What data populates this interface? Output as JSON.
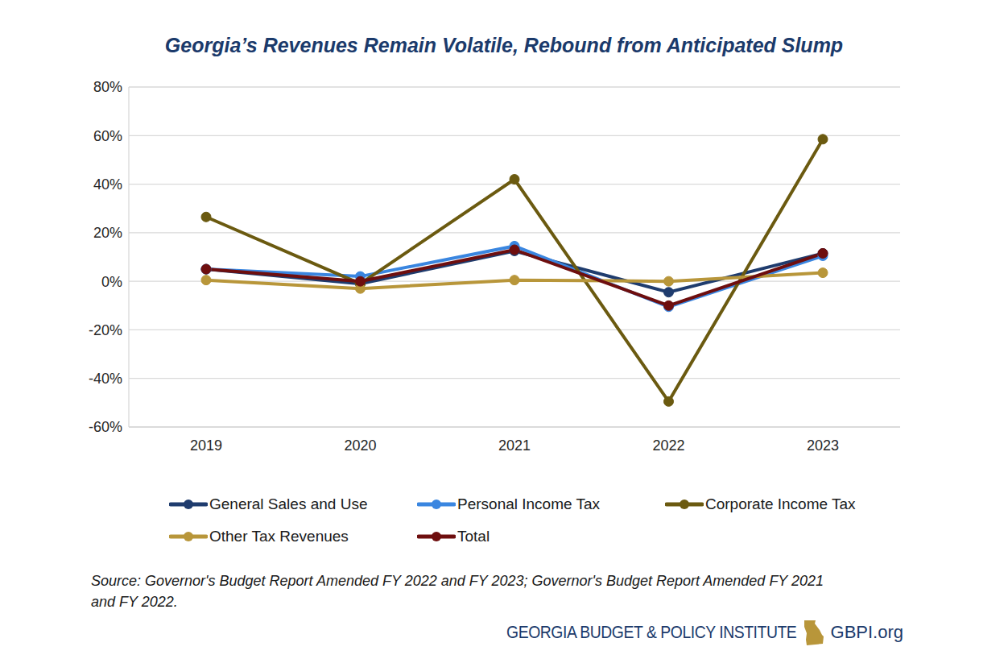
{
  "chart_data": {
    "type": "line",
    "title": "Georgia’s Revenues Remain Volatile, Rebound from Anticipated Slump",
    "categories": [
      "2019",
      "2020",
      "2021",
      "2022",
      "2023"
    ],
    "series": [
      {
        "name": "General Sales and Use",
        "color": "#1f3c6e",
        "values": [
          5,
          -1,
          12.5,
          -4.5,
          11.5
        ],
        "marker": "circle",
        "line_style": "solid"
      },
      {
        "name": "Personal Income Tax",
        "color": "#3a86e0",
        "values": [
          5,
          2,
          14.5,
          -10.5,
          10.5
        ],
        "marker": "circle",
        "line_style": "solid"
      },
      {
        "name": "Corporate Income Tax",
        "color": "#6b5a10",
        "values": [
          26.5,
          -1,
          42,
          -49.5,
          58.5
        ],
        "marker": "circle",
        "line_style": "solid"
      },
      {
        "name": "Other Tax Revenues",
        "color": "#b8963a",
        "values": [
          0.5,
          -3,
          0.5,
          0,
          3.5
        ],
        "marker": "circle",
        "line_style": "solid"
      },
      {
        "name": "Total",
        "color": "#6e0e0e",
        "values": [
          5,
          0,
          13,
          -10,
          11.5
        ],
        "marker": "circle",
        "line_style": "solid"
      }
    ],
    "ylim": [
      -60,
      80
    ],
    "yticks": [
      {
        "value": -60,
        "label": "-60%"
      },
      {
        "value": -40,
        "label": "-40%"
      },
      {
        "value": -20,
        "label": "-20%"
      },
      {
        "value": 0,
        "label": "0%"
      },
      {
        "value": 20,
        "label": "20%"
      },
      {
        "value": 40,
        "label": "40%"
      },
      {
        "value": 60,
        "label": "60%"
      },
      {
        "value": 80,
        "label": "80%"
      }
    ],
    "grid": true,
    "legend": "bottom",
    "source": "Source: Governor's Budget Report Amended FY 2022 and FY 2023; Governor's Budget Report Amended FY 2021 and FY 2022.",
    "footer": [
      "GEORGIA BUDGET & POLICY INSTITUTE",
      "GBPI.org"
    ]
  }
}
